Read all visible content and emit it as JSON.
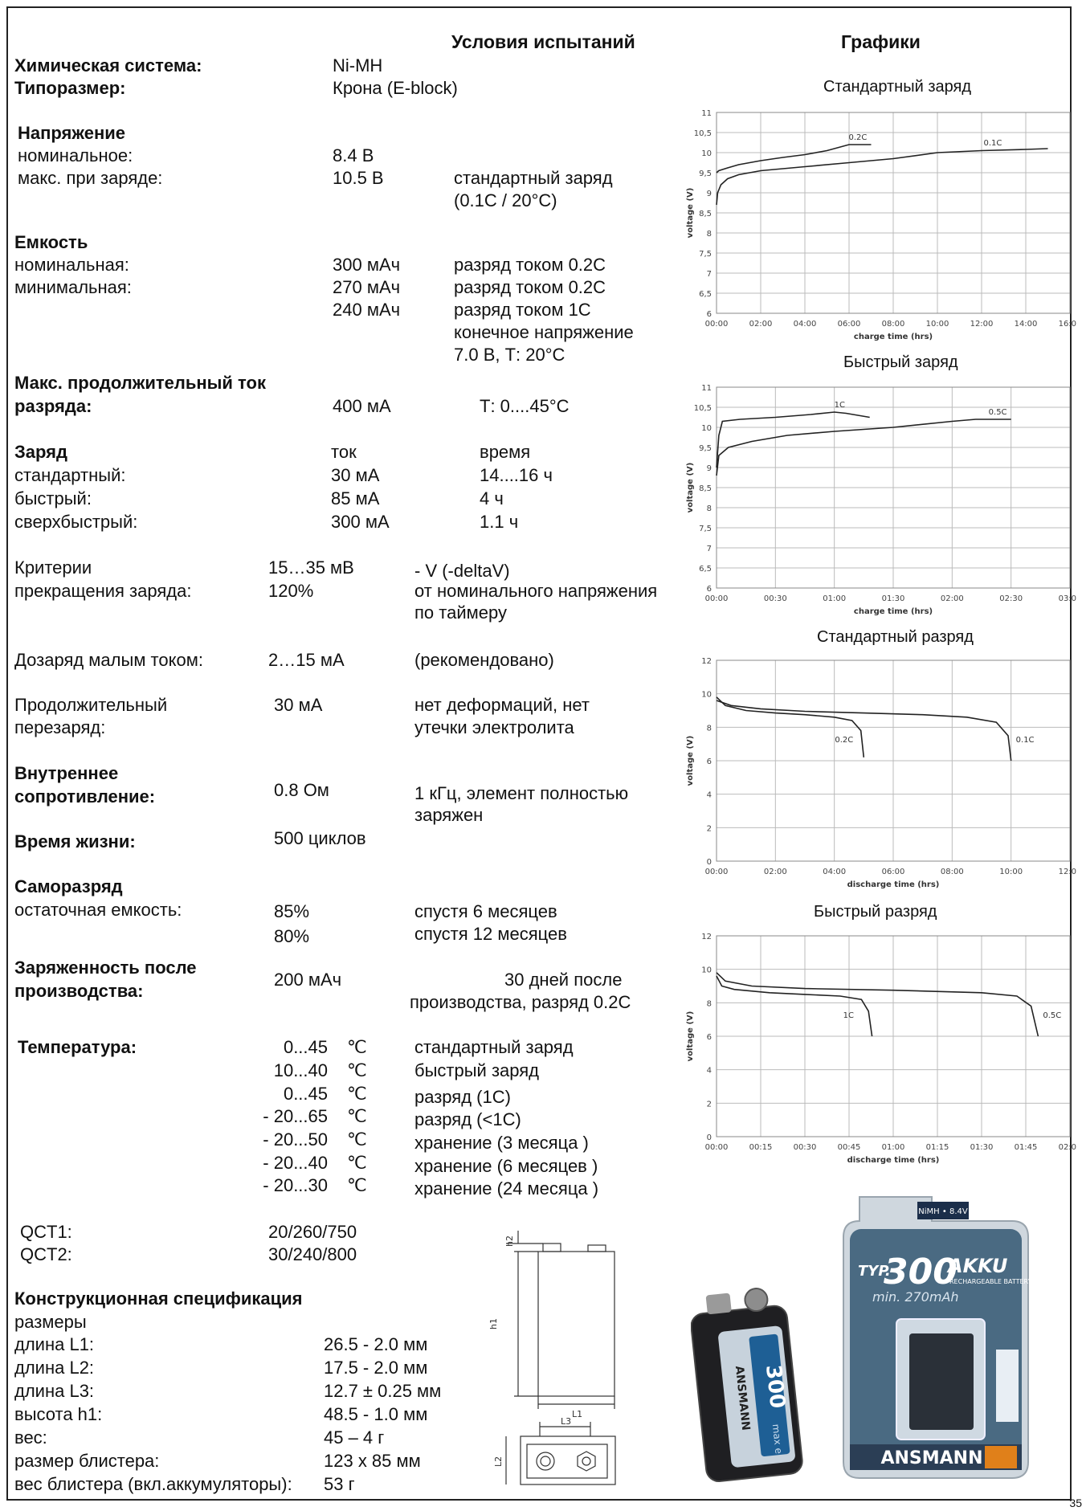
{
  "headers": {
    "conditions": "Условия испытаний",
    "graphs": "Графики"
  },
  "basic": {
    "chem_label": "Химическая система:",
    "chem_value": "Ni-MH",
    "size_label": "Типоразмер:",
    "size_value": "Крона (E-block)"
  },
  "voltage": {
    "title": "Напряжение",
    "nominal_label": "номинальное:",
    "nominal_value": "8.4 В",
    "max_label": "макс. при заряде:",
    "max_value": "10.5 В",
    "max_cond1": "стандартный заряд",
    "max_cond2": "(0.1С / 20°С)"
  },
  "capacity": {
    "title": "Емкость",
    "nominal_label": "номинальная:",
    "nominal_value": "300 мАч",
    "nominal_cond": "разряд током 0.2С",
    "min_label": "минимальная:",
    "min_value1": "270 мАч",
    "min_cond1": "разряд током 0.2С",
    "min_value2": "240 мАч",
    "min_cond2": "разряд током 1С",
    "min_cond3": "конечное напряжение",
    "min_cond4": "7.0 В, Т: 20°С"
  },
  "max_current": {
    "title1": "Макс. продолжительный ток",
    "title2": "разряда:",
    "value": "400 мА",
    "cond": "Т: 0....45°С"
  },
  "charge": {
    "title": "Заряд",
    "col_current": "ток",
    "col_time": "время",
    "rows": [
      {
        "label": "стандартный:",
        "current": "30 мА",
        "time": "14....16 ч"
      },
      {
        "label": "быстрый:",
        "current": "85 мА",
        "time": "4 ч"
      },
      {
        "label": "сверхбыстрый:",
        "current": "300 мА",
        "time": "1.1 ч"
      }
    ]
  },
  "termination": {
    "label1": "Критерии",
    "label2": "прекращения заряда:",
    "value1": "15…35 мВ",
    "value2": "120%",
    "cond1": "- V (-deltaV)",
    "cond2": "от номинального напряжения",
    "cond3": "по таймеру"
  },
  "trickle": {
    "label": "Дозаряд малым током:",
    "value": "2…15 мА",
    "cond": "(рекомендовано)"
  },
  "overcharge": {
    "label1": "Продолжительный",
    "label2": "перезаряд:",
    "value": "30 мА",
    "cond1": "нет деформаций, нет",
    "cond2": "утечки электролита"
  },
  "resistance": {
    "label1": "Внутреннее",
    "label2": "сопротивление:",
    "value": "0.8 Ом",
    "cond1": "1 кГц, элемент полностью",
    "cond2": "заряжен"
  },
  "lifetime": {
    "label": "Время жизни:",
    "value": "500 циклов"
  },
  "self_discharge": {
    "title": "Саморазряд",
    "label": "остаточная емкость:",
    "value1": "85%",
    "cond1": "спустя 6 месяцев",
    "value2": "80%",
    "cond2": "спустя 12 месяцев"
  },
  "charged_state": {
    "label1": "Заряженность после",
    "label2": "производства:",
    "value": "200 мАч",
    "cond1": "30 дней после",
    "cond2": "производства, разряд 0.2С"
  },
  "temperature": {
    "title": "Температура:",
    "unit": "℃",
    "rows": [
      {
        "range": "0...45",
        "cond": "стандартный заряд"
      },
      {
        "range": "10...40",
        "cond": "быстрый заряд"
      },
      {
        "range": "0...45",
        "cond": "разряд (1С)"
      },
      {
        "range": "- 20...65",
        "cond": "разряд (<1С)"
      },
      {
        "range": "- 20...50",
        "cond": "хранение (3 месяца  )"
      },
      {
        "range": "- 20...40",
        "cond": "хранение (6 месяцев  )"
      },
      {
        "range": "- 20...30",
        "cond": "хранение (24 месяца  )"
      }
    ]
  },
  "qct": {
    "label1": "QCT1:",
    "value1": "20/260/750",
    "label2": "QCT2:",
    "value2": "30/240/800"
  },
  "construction": {
    "title": "Конструкционная спецификация",
    "subtitle": "размеры",
    "rows": [
      {
        "label": "длина L1:",
        "value": "26.5 - 2.0 мм"
      },
      {
        "label": "длина L2:",
        "value": "17.5 - 2.0 мм"
      },
      {
        "label": "длина L3:",
        "value": "12.7 ± 0.25 мм"
      },
      {
        "label": "высота h1:",
        "value": "48.5 - 1.0 мм"
      },
      {
        "label": "вес:",
        "value": "45 – 4 г"
      },
      {
        "label": "размер блистера:",
        "value": "123 x  85 мм"
      },
      {
        "label": "вес блистера (вкл.аккумуляторы):",
        "value": "53 г"
      }
    ]
  },
  "drawing": {
    "h1": "h1",
    "h2": "h2",
    "L1": "L1",
    "L2": "L2",
    "L3": "L3"
  },
  "product": {
    "battery_brand": "ANSMANN",
    "battery_capacity": "300",
    "battery_tag": "max e",
    "pack_brand": "ANSMANN",
    "pack_typ": "TYP.",
    "pack_capacity": "300",
    "pack_akku": "AKKU",
    "pack_min": "min. 270mAh",
    "pack_badge": "NiMH • 8.4V",
    "pack_recharge": "RECHARGEABLE BATTERY"
  },
  "page_number": "35",
  "chart_data": [
    {
      "type": "line",
      "title": "Стандартный заряд",
      "xlabel": "charge time (hrs)",
      "ylabel": "voltage (V)",
      "x_ticks": [
        "00:00",
        "02:00",
        "04:00",
        "06:00",
        "08:00",
        "10:00",
        "12:00",
        "14:00",
        "16:00"
      ],
      "y_ticks": [
        "6",
        "6,5",
        "7",
        "7,5",
        "8",
        "8,5",
        "9",
        "9,5",
        "10",
        "10,5",
        "11"
      ],
      "xlim": [
        0,
        16
      ],
      "ylim": [
        6,
        11
      ],
      "grid": true,
      "series": [
        {
          "name": "0.2C",
          "x": [
            0,
            0.1,
            0.5,
            1,
            2,
            3,
            4,
            5,
            6,
            7
          ],
          "y": [
            9.5,
            9.55,
            9.62,
            9.7,
            9.8,
            9.88,
            9.95,
            10.05,
            10.2,
            10.2
          ]
        },
        {
          "name": "0.1C",
          "x": [
            0,
            0.05,
            0.2,
            0.5,
            1,
            2,
            4,
            6,
            8,
            10,
            12,
            14,
            15
          ],
          "y": [
            8.7,
            9.0,
            9.2,
            9.35,
            9.45,
            9.55,
            9.65,
            9.75,
            9.85,
            10.0,
            10.05,
            10.08,
            10.1
          ]
        }
      ]
    },
    {
      "type": "line",
      "title": "Быстрый заряд",
      "xlabel": "charge time (hrs)",
      "ylabel": "voltage (V)",
      "x_ticks": [
        "00:00",
        "00:30",
        "01:00",
        "01:30",
        "02:00",
        "02:30",
        "03:00"
      ],
      "y_ticks": [
        "6",
        "6,5",
        "7",
        "7,5",
        "8",
        "8,5",
        "9",
        "9,5",
        "10",
        "10,5",
        "11"
      ],
      "xlim": [
        0,
        3
      ],
      "ylim": [
        6,
        11
      ],
      "grid": true,
      "series": [
        {
          "name": "1C",
          "x": [
            0,
            0.02,
            0.05,
            0.2,
            0.5,
            0.8,
            1.0,
            1.1,
            1.2,
            1.3
          ],
          "y": [
            9.0,
            9.8,
            10.15,
            10.2,
            10.25,
            10.32,
            10.38,
            10.35,
            10.3,
            10.25
          ]
        },
        {
          "name": "0.5C",
          "x": [
            0,
            0.02,
            0.1,
            0.3,
            0.6,
            1.0,
            1.5,
            2.0,
            2.2,
            2.4,
            2.5
          ],
          "y": [
            8.8,
            9.3,
            9.5,
            9.65,
            9.8,
            9.9,
            10.0,
            10.15,
            10.2,
            10.2,
            10.2
          ]
        }
      ]
    },
    {
      "type": "line",
      "title": "Стандартный разряд",
      "xlabel": "discharge time (hrs)",
      "ylabel": "voltage (V)",
      "x_ticks": [
        "00:00",
        "02:00",
        "04:00",
        "06:00",
        "08:00",
        "10:00",
        "12:00"
      ],
      "y_ticks": [
        "0",
        "2",
        "4",
        "6",
        "8",
        "10",
        "12"
      ],
      "xlim": [
        0,
        12
      ],
      "ylim": [
        0,
        12
      ],
      "grid": true,
      "series": [
        {
          "name": "0.2C",
          "x": [
            0,
            0.3,
            1,
            2,
            3,
            4,
            4.6,
            4.9,
            5.0
          ],
          "y": [
            9.8,
            9.3,
            9.0,
            8.85,
            8.75,
            8.6,
            8.4,
            7.8,
            6.2
          ]
        },
        {
          "name": "0.1C",
          "x": [
            0,
            0.5,
            1.5,
            3,
            5,
            7,
            8.5,
            9.5,
            9.9,
            10.0
          ],
          "y": [
            9.6,
            9.3,
            9.1,
            8.95,
            8.85,
            8.75,
            8.6,
            8.3,
            7.5,
            6.0
          ]
        }
      ]
    },
    {
      "type": "line",
      "title": "Быстрый разряд",
      "xlabel": "discharge time (hrs)",
      "ylabel": "voltage (V)",
      "x_ticks": [
        "00:00",
        "00:15",
        "00:30",
        "00:45",
        "01:00",
        "01:15",
        "01:30",
        "01:45",
        "02:00"
      ],
      "y_ticks": [
        "0",
        "2",
        "4",
        "6",
        "8",
        "10",
        "12"
      ],
      "xlim": [
        0,
        2
      ],
      "ylim": [
        0,
        12
      ],
      "grid": true,
      "series": [
        {
          "name": "1C",
          "x": [
            0,
            0.03,
            0.1,
            0.3,
            0.5,
            0.7,
            0.82,
            0.86,
            0.88
          ],
          "y": [
            9.6,
            9.0,
            8.8,
            8.6,
            8.5,
            8.4,
            8.2,
            7.5,
            6.0
          ]
        },
        {
          "name": "0.5C",
          "x": [
            0,
            0.05,
            0.2,
            0.5,
            1.0,
            1.5,
            1.7,
            1.78,
            1.82
          ],
          "y": [
            9.8,
            9.3,
            9.0,
            8.85,
            8.75,
            8.6,
            8.4,
            7.8,
            6.0
          ]
        }
      ]
    }
  ]
}
